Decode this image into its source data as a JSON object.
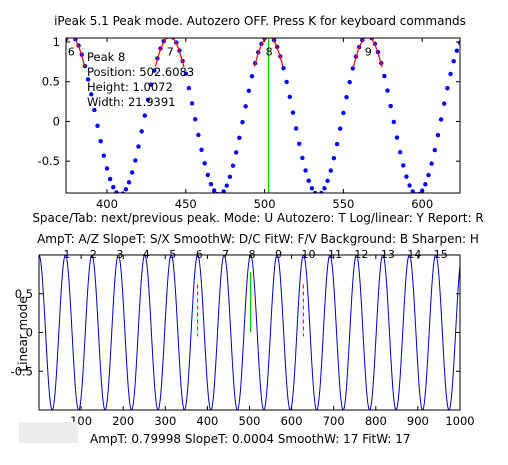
{
  "window": {
    "title": "iPeak 5.1  Peak mode.      Autozero OFF.   Press K for keyboard commands"
  },
  "help_line_1": "Space/Tab: next/previous peak.  Mode: U  Autozero: T   Log/linear: Y  Report: R",
  "help_line_2": "AmpT: A/Z   SlopeT: S/X   SmoothW: D/C    FitW: F/V   Background: B   Sharpen: H",
  "bottom_status": "AmpT: 0.79998      SlopeT: 0.0004     SmoothW: 17     FitW: 17",
  "colors": {
    "signal_upper": "#0000ff",
    "signal_lower": "#0000c8",
    "cursor": "#00cc00",
    "peak_marker": "#ff0000",
    "plot_background": "#ffffff",
    "button_background": "#ececec"
  },
  "chart_data": [
    {
      "type": "scatter",
      "title": "",
      "xlabel": "",
      "ylabel": "",
      "xlim": [
        374,
        624
      ],
      "ylim": [
        -0.9,
        1.05
      ],
      "x_ticks": [
        400,
        450,
        500,
        550,
        600
      ],
      "y_ticks": [
        -0.5,
        0,
        0.5,
        1
      ],
      "y_tick_labels": [
        "-0.5",
        "0",
        "0.5",
        "1"
      ],
      "grid": false,
      "cursor_x": 502.6,
      "signal": {
        "period": 62.83,
        "amplitude": 1.0,
        "offset": 0.08,
        "phase_peak_x": 502.6,
        "x_step": 2
      },
      "peak_labels": [
        {
          "text": "6",
          "x": 377.0
        },
        {
          "text": "7",
          "x": 439.8
        },
        {
          "text": "8",
          "x": 502.6
        },
        {
          "text": "9",
          "x": 565.5
        }
      ],
      "peak_info": {
        "peak": "Peak 8",
        "position": "Position: 502.6083",
        "height": "Height: 1.0072",
        "width": "Width: 21.9391"
      }
    },
    {
      "type": "line",
      "title": "",
      "xlabel": "",
      "ylabel": "Linear mode",
      "xlim": [
        0,
        1000
      ],
      "ylim": [
        -1,
        1
      ],
      "x_ticks": [
        100,
        200,
        300,
        400,
        500,
        600,
        700,
        800,
        900,
        1000
      ],
      "y_ticks": [
        -0.5,
        0,
        0.5
      ],
      "y_tick_labels": [
        "-0.5",
        "0",
        "0.5"
      ],
      "grid": false,
      "cursor_x": 502.6,
      "marker_x": [
        376.8,
        628.0
      ],
      "signal": {
        "period": 62.83,
        "amplitude": 1.0,
        "offset": 0,
        "phase_peak_x": 502.6
      },
      "peak_numbers": [
        {
          "text": "1",
          "x": 62.8
        },
        {
          "text": "2",
          "x": 125.7
        },
        {
          "text": "3",
          "x": 188.5
        },
        {
          "text": "4",
          "x": 251.3
        },
        {
          "text": "5",
          "x": 314.2
        },
        {
          "text": "6",
          "x": 377.0
        },
        {
          "text": "7",
          "x": 439.8
        },
        {
          "text": "8",
          "x": 502.6
        },
        {
          "text": "9",
          "x": 565.5
        },
        {
          "text": "10",
          "x": 628.3
        },
        {
          "text": "11",
          "x": 691.2
        },
        {
          "text": "12",
          "x": 754.0
        },
        {
          "text": "13",
          "x": 816.8
        },
        {
          "text": "14",
          "x": 879.7
        },
        {
          "text": "15",
          "x": 942.5
        }
      ]
    }
  ]
}
